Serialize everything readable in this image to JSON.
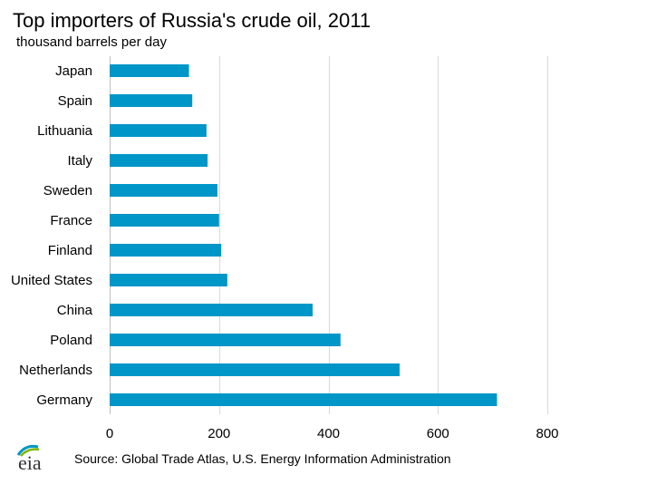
{
  "chart_data": {
    "type": "bar",
    "orientation": "horizontal",
    "title": "Top importers of Russia's crude oil, 2011",
    "subtitle": "thousand barrels per day",
    "categories": [
      "Japan",
      "Spain",
      "Lithuania",
      "Italy",
      "Sweden",
      "France",
      "Finland",
      "United States",
      "China",
      "Poland",
      "Netherlands",
      "Germany"
    ],
    "values": [
      145,
      151,
      177,
      179,
      197,
      200,
      204,
      215,
      371,
      422,
      530,
      708
    ],
    "xlim": [
      0,
      800
    ],
    "xticks": [
      0,
      200,
      400,
      600,
      800
    ],
    "grid": true,
    "bar_color": "#0096c7",
    "grid_color": "#d9d9d9"
  },
  "footer": {
    "source": "Source: Global Trade Atlas, U.S. Energy Information Administration",
    "logo_text": "eia"
  }
}
